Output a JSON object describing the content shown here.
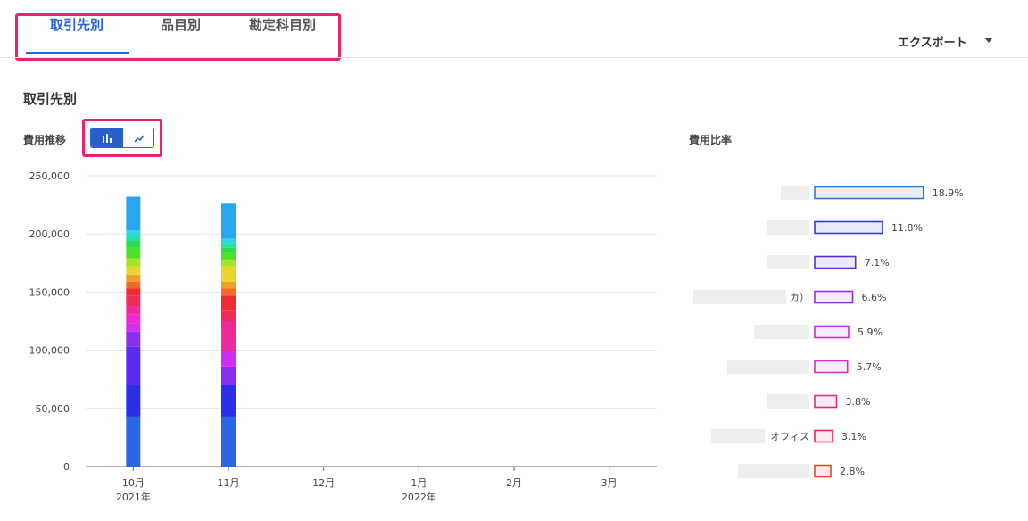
{
  "tabs": [
    {
      "label": "取引先別",
      "active": true
    },
    {
      "label": "品目別",
      "active": false
    },
    {
      "label": "勘定科目別",
      "active": false
    }
  ],
  "export": {
    "label": "エクスポート",
    "icon": "caret-down-icon"
  },
  "section_title": "取引先別",
  "trend": {
    "label": "費用推移",
    "toggle": {
      "selected": "bar",
      "options": [
        "bar-chart-icon",
        "line-chart-icon"
      ]
    }
  },
  "ratio": {
    "label": "費用比率"
  },
  "chart_data": [
    {
      "type": "bar",
      "stacked": true,
      "categories": [
        "10月",
        "11月",
        "12月",
        "1月",
        "2月",
        "3月"
      ],
      "year_labels": [
        {
          "category": "10月",
          "label": "2021年"
        },
        {
          "category": "1月",
          "label": "2022年"
        }
      ],
      "ylim": [
        0,
        250000
      ],
      "yticks": [
        "0",
        "50,000",
        "100,000",
        "150,000",
        "200,000",
        "250,000"
      ],
      "grid": true,
      "series": [
        {
          "color": "#2a66e6",
          "values": [
            43000,
            43000,
            0,
            0,
            0,
            0
          ]
        },
        {
          "color": "#2b2fe8",
          "values": [
            27000,
            27000,
            0,
            0,
            0,
            0
          ]
        },
        {
          "color": "#5b2cf0",
          "values": [
            33000,
            0,
            0,
            0,
            0,
            0
          ]
        },
        {
          "color": "#8a2ef0",
          "values": [
            13000,
            16000,
            0,
            0,
            0,
            0
          ]
        },
        {
          "color": "#d02ef0",
          "values": [
            7000,
            13000,
            0,
            0,
            0,
            0
          ]
        },
        {
          "color": "#f028d8",
          "values": [
            8000,
            0,
            0,
            0,
            0,
            0
          ]
        },
        {
          "color": "#f02a9a",
          "values": [
            7000,
            26000,
            0,
            0,
            0,
            0
          ]
        },
        {
          "color": "#f02a5a",
          "values": [
            9000,
            9000,
            0,
            0,
            0,
            0
          ]
        },
        {
          "color": "#f02b30",
          "values": [
            6000,
            13000,
            0,
            0,
            0,
            0
          ]
        },
        {
          "color": "#f06a2a",
          "values": [
            6000,
            6000,
            0,
            0,
            0,
            0
          ]
        },
        {
          "color": "#f0a02a",
          "values": [
            6000,
            6000,
            0,
            0,
            0,
            0
          ]
        },
        {
          "color": "#e6d82a",
          "values": [
            7000,
            13000,
            0,
            0,
            0,
            0
          ]
        },
        {
          "color": "#a8e02a",
          "values": [
            7000,
            6000,
            0,
            0,
            0,
            0
          ]
        },
        {
          "color": "#4fe02a",
          "values": [
            9000,
            6000,
            0,
            0,
            0,
            0
          ]
        },
        {
          "color": "#2ae04a",
          "values": [
            6000,
            4000,
            0,
            0,
            0,
            0
          ]
        },
        {
          "color": "#2ae0a0",
          "values": [
            4000,
            4000,
            0,
            0,
            0,
            0
          ]
        },
        {
          "color": "#2ad8e6",
          "values": [
            5000,
            4000,
            0,
            0,
            0,
            0
          ]
        },
        {
          "color": "#2aa6f0",
          "values": [
            29000,
            30000,
            0,
            0,
            0,
            0
          ]
        }
      ]
    },
    {
      "type": "bar",
      "orientation": "horizontal",
      "categories": [
        "",
        "",
        "",
        "カ）",
        "",
        "",
        "",
        "オフィス",
        ""
      ],
      "values": [
        18.9,
        11.8,
        7.1,
        6.6,
        5.9,
        5.7,
        3.8,
        3.1,
        2.8
      ],
      "value_labels": [
        "18.9%",
        "11.8%",
        "7.1%",
        "6.6%",
        "5.9%",
        "5.7%",
        "3.8%",
        "3.1%",
        "2.8%"
      ],
      "colors": [
        "#2a7ad8",
        "#2a3ed8",
        "#5a2ed0",
        "#9a2ed6",
        "#c02ed8",
        "#d82ec8",
        "#d82e8a",
        "#e02e50",
        "#e04a2e"
      ],
      "fills": [
        "#e9effa",
        "#e9eaf9",
        "#efeafb",
        "#f4eafb",
        "#f9eafb",
        "#fbeaf8",
        "#fbeaf2",
        "#fbeaee",
        "#fbeeea"
      ]
    }
  ]
}
